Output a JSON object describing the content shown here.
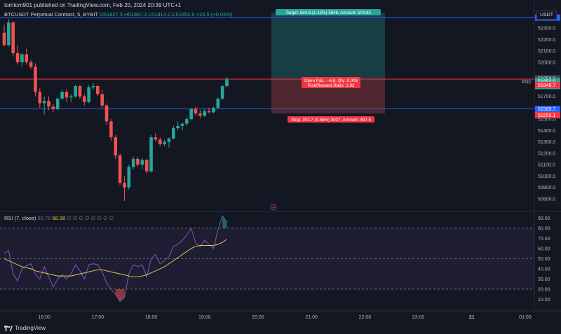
{
  "header": {
    "published": "tomtom901 published on TradingView.com, Feb 20, 2024 20:39 UTC+1",
    "symbol": "BTCUSDT Perpetual Contract, 5, BYBIT",
    "ohlc_o": "O51827.5",
    "ohlc_h": "H51887.2",
    "ohlc_l": "L51814.2",
    "ohlc_c": "C51852.0",
    "change": "+24.5 (+0.05%)",
    "currency": "USDT"
  },
  "rsi_header": {
    "label": "RSI (7, close)",
    "value1": "85.78",
    "value2": "68.98",
    "dots": "∅ ∅ ∅ ∅ ∅ ∅ ∅ ∅"
  },
  "footer": {
    "brand": "TradingView"
  },
  "colors": {
    "bg": "#131722",
    "up": "#26a69a",
    "down": "#ef5350",
    "blue_line": "#2962ff",
    "red_line": "#f23645",
    "rsi": "#7e57c2",
    "rsi_ma": "#e3c44d"
  },
  "chart_data": [
    {
      "type": "candlestick",
      "title": "BTCUSDT Perpetual Contract, 5, BYBIT",
      "ylim": [
        50700,
        52400
      ],
      "price_ticks": [
        "52300.0",
        "52200.0",
        "52100.0",
        "52000.0",
        "51700.0",
        "51500.0",
        "51400.0",
        "51300.0",
        "51200.0",
        "51100.0",
        "51000.0",
        "50900.0",
        "50800.0"
      ],
      "time_ticks": [
        {
          "label": "16:00",
          "t": 9
        },
        {
          "label": "17:00",
          "t": 21
        },
        {
          "label": "18:00",
          "t": 33
        },
        {
          "label": "19:00",
          "t": 45
        },
        {
          "label": "20:00",
          "t": 57
        },
        {
          "label": "21:00",
          "t": 69
        },
        {
          "label": "22:00",
          "t": 81
        },
        {
          "label": "23:00",
          "t": 93
        },
        {
          "label": "21",
          "t": 105
        },
        {
          "label": "01:00",
          "t": 117
        }
      ],
      "candles": [
        [
          52260,
          52330,
          52140,
          52150
        ],
        [
          52150,
          52380,
          52140,
          52350
        ],
        [
          52350,
          52360,
          52050,
          52080
        ],
        [
          52080,
          52150,
          51980,
          52000
        ],
        [
          52000,
          52080,
          51960,
          52070
        ],
        [
          52070,
          52120,
          51980,
          52000
        ],
        [
          52000,
          52020,
          51940,
          51960
        ],
        [
          51960,
          51990,
          51700,
          51740
        ],
        [
          51740,
          51770,
          51600,
          51640
        ],
        [
          51640,
          51700,
          51540,
          51660
        ],
        [
          51660,
          51700,
          51580,
          51610
        ],
        [
          51610,
          51630,
          51560,
          51590
        ],
        [
          51590,
          51690,
          51580,
          51680
        ],
        [
          51680,
          51760,
          51670,
          51740
        ],
        [
          51740,
          51760,
          51650,
          51690
        ],
        [
          51690,
          51720,
          51650,
          51700
        ],
        [
          51700,
          51800,
          51690,
          51790
        ],
        [
          51790,
          51800,
          51680,
          51700
        ],
        [
          51700,
          51720,
          51620,
          51650
        ],
        [
          51650,
          51800,
          51640,
          51780
        ],
        [
          51780,
          51820,
          51760,
          51790
        ],
        [
          51790,
          51800,
          51700,
          51720
        ],
        [
          51720,
          51760,
          51600,
          51620
        ],
        [
          51620,
          51640,
          51450,
          51480
        ],
        [
          51480,
          51500,
          51310,
          51340
        ],
        [
          51340,
          51360,
          51150,
          51180
        ],
        [
          51180,
          51200,
          50920,
          50940
        ],
        [
          50940,
          51000,
          50780,
          50900
        ],
        [
          50900,
          51100,
          50880,
          51080
        ],
        [
          51080,
          51170,
          51060,
          51150
        ],
        [
          51150,
          51170,
          51080,
          51100
        ],
        [
          51100,
          51160,
          51060,
          51140
        ],
        [
          51140,
          51150,
          51020,
          51040
        ],
        [
          51040,
          51360,
          51030,
          51340
        ],
        [
          51340,
          51380,
          51300,
          51320
        ],
        [
          51320,
          51340,
          51260,
          51280
        ],
        [
          51280,
          51320,
          51260,
          51300
        ],
        [
          51300,
          51340,
          51250,
          51330
        ],
        [
          51330,
          51440,
          51320,
          51420
        ],
        [
          51420,
          51480,
          51400,
          51440
        ],
        [
          51440,
          51470,
          51400,
          51460
        ],
        [
          51460,
          51520,
          51440,
          51500
        ],
        [
          51500,
          51600,
          51490,
          51590
        ],
        [
          51590,
          51610,
          51530,
          51550
        ],
        [
          51550,
          51580,
          51510,
          51530
        ],
        [
          51530,
          51590,
          51520,
          51570
        ],
        [
          51570,
          51600,
          51550,
          51560
        ],
        [
          51560,
          51610,
          51550,
          51600
        ],
        [
          51600,
          51690,
          51590,
          51680
        ],
        [
          51680,
          51800,
          51670,
          51790
        ],
        [
          51790,
          51870,
          51780,
          51852
        ]
      ],
      "levels": [
        {
          "price": 52393.0,
          "label": "52393.0",
          "color": "#2962ff"
        },
        {
          "price": 51589.7,
          "label": "51589.7",
          "color": "#2962ff"
        },
        {
          "price": 51556.1,
          "label": "51556.1",
          "color": "#f23645"
        },
        {
          "price": 51848.7,
          "label": "51848.7",
          "color": "#f23645"
        },
        {
          "price": 51858.8,
          "label": "51858.8",
          "color": "#434651"
        }
      ],
      "current_price": {
        "label": "51852.0",
        "countdown": "00:06",
        "color": "#26a69a"
      },
      "poc_label": "POC",
      "position": {
        "entry": 51852.0,
        "target": 52436.8,
        "stop": 51549.3,
        "target_label": "Target: 584.8 (1.13%) 5848, Amount: 504.83",
        "stop_label": "Stop: 302.7 (0.58%) 3027, Amount: 497.5",
        "pnl_label": "Open P&L: −6.8, Qty: 0.008",
        "rr_label": "Risk/Reward Ratio: 1.93"
      }
    },
    {
      "type": "line",
      "title": "RSI (7, close)",
      "ylim": [
        0,
        95
      ],
      "ticks": [
        "90.00",
        "80.00",
        "70.00",
        "60.00",
        "50.00",
        "40.00",
        "30.00",
        "20.00",
        "10.00"
      ],
      "bands": [
        20,
        50,
        80
      ],
      "series": [
        {
          "name": "RSI (7, close)",
          "color": "#7e57c2",
          "values": [
            55,
            58,
            35,
            28,
            40,
            43,
            45,
            35,
            30,
            42,
            32,
            22,
            30,
            34,
            30,
            35,
            44,
            38,
            30,
            44,
            45,
            44,
            37,
            26,
            20,
            15,
            8,
            12,
            35,
            44,
            42,
            44,
            32,
            50,
            54,
            45,
            48,
            52,
            62,
            64,
            68,
            73,
            80,
            65,
            62,
            68,
            64,
            60,
            78,
            92,
            86
          ]
        },
        {
          "name": "68.98",
          "color": "#e3c44d",
          "values": [
            50,
            48,
            46,
            44,
            42,
            41,
            40,
            38,
            37,
            36,
            35,
            34,
            33,
            33,
            33,
            33,
            34,
            35,
            36,
            37,
            38,
            39,
            39,
            38,
            37,
            36,
            35,
            34,
            33,
            32,
            32,
            33,
            34,
            36,
            38,
            40,
            42,
            45,
            48,
            51,
            54,
            57,
            60,
            62,
            63,
            63,
            63,
            63,
            64,
            66,
            69
          ]
        }
      ]
    }
  ]
}
